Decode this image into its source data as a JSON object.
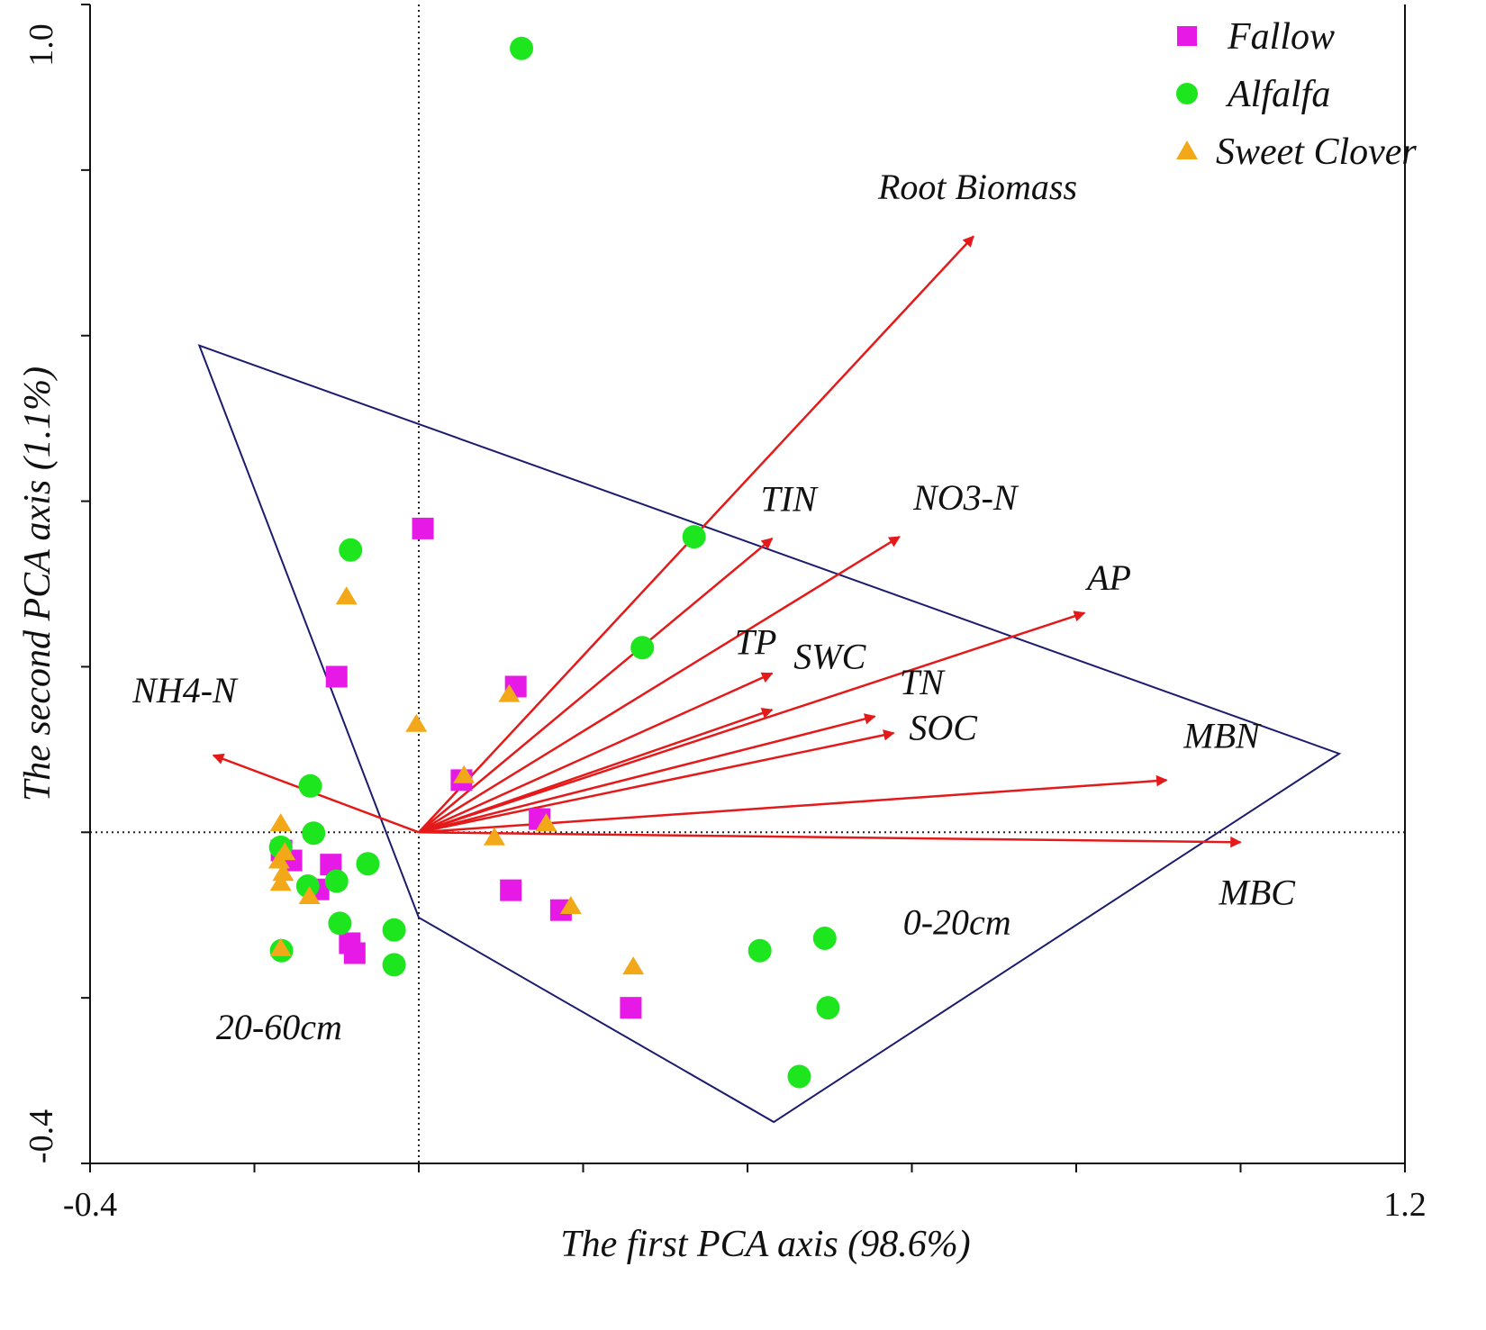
{
  "chart_data": {
    "type": "scatter",
    "title": "",
    "xlabel": "The first PCA axis (98.6%)",
    "ylabel": "The second PCA axis (1.1%)",
    "xlim": [
      -0.4,
      1.2
    ],
    "ylim": [
      -0.4,
      1.0
    ],
    "x_tick_labels": [
      {
        "value": -0.4,
        "label": "-0.4"
      },
      {
        "value": 1.2,
        "label": "1.2"
      }
    ],
    "y_tick_labels": [
      {
        "value": -0.4,
        "label": "-0.4"
      },
      {
        "value": 1.0,
        "label": "1.0"
      }
    ],
    "x_ticks": [
      -0.4,
      -0.2,
      0.0,
      0.2,
      0.4,
      0.6,
      0.8,
      1.0,
      1.2
    ],
    "y_ticks": [
      -0.4,
      -0.2,
      0.0,
      0.2,
      0.4,
      0.6,
      0.8,
      1.0
    ],
    "reference_lines": {
      "x": 0.0,
      "y": 0.0,
      "style": "dotted"
    },
    "legend": {
      "position": "top-right",
      "entries": [
        {
          "name": "Fallow",
          "marker": "square",
          "color": "#e619e6"
        },
        {
          "name": "Alfalfa",
          "marker": "circle",
          "color": "#1ee61e"
        },
        {
          "name": "Sweet Clover",
          "marker": "triangle",
          "color": "#f2a818"
        }
      ]
    },
    "series": [
      {
        "name": "Fallow",
        "marker": "square",
        "color": "#e619e6",
        "points": [
          [
            0.005,
            0.367
          ],
          [
            -0.1,
            0.188
          ],
          [
            0.118,
            0.176
          ],
          [
            0.052,
            0.063
          ],
          [
            0.147,
            0.016
          ],
          [
            -0.167,
            -0.022
          ],
          [
            -0.155,
            -0.034
          ],
          [
            -0.107,
            -0.039
          ],
          [
            -0.122,
            -0.069
          ],
          [
            0.112,
            -0.07
          ],
          [
            0.173,
            -0.094
          ],
          [
            -0.084,
            -0.134
          ],
          [
            -0.078,
            -0.146
          ],
          [
            0.258,
            -0.212
          ]
        ]
      },
      {
        "name": "Alfalfa",
        "marker": "circle",
        "color": "#1ee61e",
        "points": [
          [
            0.125,
            0.947
          ],
          [
            0.335,
            0.357
          ],
          [
            -0.083,
            0.341
          ],
          [
            0.272,
            0.223
          ],
          [
            -0.132,
            0.056
          ],
          [
            -0.128,
            -0.001
          ],
          [
            -0.168,
            -0.018
          ],
          [
            -0.062,
            -0.038
          ],
          [
            -0.135,
            -0.065
          ],
          [
            -0.1,
            -0.059
          ],
          [
            -0.096,
            -0.11
          ],
          [
            -0.03,
            -0.118
          ],
          [
            -0.167,
            -0.143
          ],
          [
            -0.03,
            -0.16
          ],
          [
            0.415,
            -0.143
          ],
          [
            0.494,
            -0.128
          ],
          [
            0.498,
            -0.212
          ],
          [
            0.463,
            -0.295
          ]
        ]
      },
      {
        "name": "Sweet Clover",
        "marker": "triangle",
        "color": "#f2a818",
        "points": [
          [
            -0.088,
            0.284
          ],
          [
            -0.003,
            0.13
          ],
          [
            0.11,
            0.166
          ],
          [
            0.055,
            0.068
          ],
          [
            0.092,
            -0.007
          ],
          [
            0.155,
            0.01
          ],
          [
            -0.168,
            0.01
          ],
          [
            -0.163,
            -0.025
          ],
          [
            -0.17,
            -0.035
          ],
          [
            -0.165,
            -0.05
          ],
          [
            -0.168,
            -0.062
          ],
          [
            -0.133,
            -0.078
          ],
          [
            0.185,
            -0.09
          ],
          [
            0.261,
            -0.163
          ],
          [
            -0.168,
            -0.141
          ]
        ]
      }
    ],
    "vectors": [
      {
        "name": "Root Biomass",
        "x": 0.675,
        "y": 0.72
      },
      {
        "name": "TIN",
        "x": 0.43,
        "y": 0.355
      },
      {
        "name": "NO3-N",
        "x": 0.585,
        "y": 0.357
      },
      {
        "name": "AP",
        "x": 0.81,
        "y": 0.265
      },
      {
        "name": "TP",
        "x": 0.43,
        "y": 0.192
      },
      {
        "name": "SWC",
        "x": 0.43,
        "y": 0.148
      },
      {
        "name": "TN",
        "x": 0.555,
        "y": 0.14
      },
      {
        "name": "SOC",
        "x": 0.578,
        "y": 0.12
      },
      {
        "name": "MBN",
        "x": 0.91,
        "y": 0.063
      },
      {
        "name": "MBC",
        "x": 1.0,
        "y": -0.012
      },
      {
        "name": "NH4-N",
        "x": -0.25,
        "y": 0.093
      }
    ],
    "vector_labels": [
      {
        "name": "Root Biomass",
        "x": 0.68,
        "y": 0.765
      },
      {
        "name": "TIN",
        "x": 0.45,
        "y": 0.388
      },
      {
        "name": "NO3-N",
        "x": 0.665,
        "y": 0.39
      },
      {
        "name": "AP",
        "x": 0.84,
        "y": 0.293
      },
      {
        "name": "TP",
        "x": 0.41,
        "y": 0.215
      },
      {
        "name": "SWC",
        "x": 0.5,
        "y": 0.198
      },
      {
        "name": "TN",
        "x": 0.612,
        "y": 0.167
      },
      {
        "name": "SOC",
        "x": 0.638,
        "y": 0.112
      },
      {
        "name": "MBN",
        "x": 0.977,
        "y": 0.102
      },
      {
        "name": "MBC",
        "x": 1.02,
        "y": -0.087
      },
      {
        "name": "NH4-N",
        "x": -0.285,
        "y": 0.157
      }
    ],
    "groups": [
      {
        "name": "0-20cm",
        "label_x": 0.655,
        "label_y": -0.123,
        "polygon": [
          [
            -0.267,
            0.588
          ],
          [
            1.12,
            0.095
          ],
          [
            0.432,
            -0.35
          ],
          [
            0.0,
            -0.103
          ]
        ]
      },
      {
        "name": "20-60cm",
        "label_x": -0.17,
        "label_y": -0.25,
        "polygon": []
      }
    ]
  }
}
